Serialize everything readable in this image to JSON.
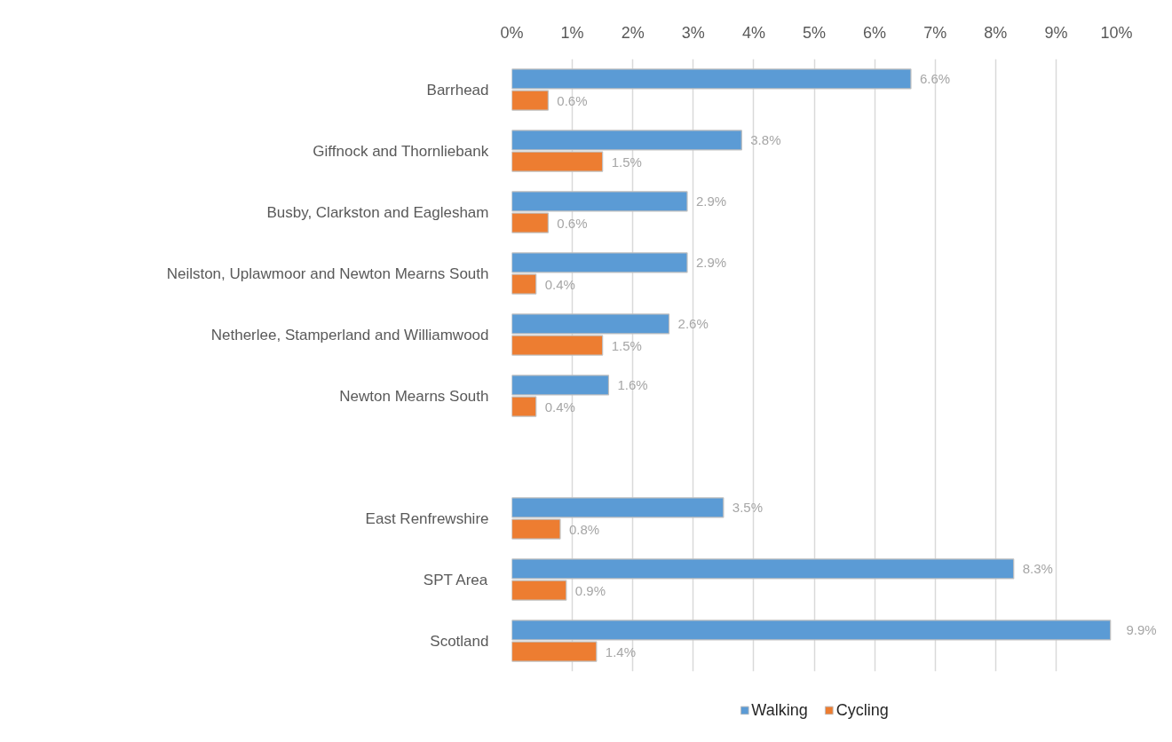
{
  "chart_data": {
    "type": "bar",
    "orientation": "horizontal",
    "categories": [
      "Barrhead",
      "Giffnock and Thornliebank",
      "Busby, Clarkston and Eaglesham",
      "Neilston, Uplawmoor and Newton Mearns South",
      "Netherlee, Stamperland and Williamwood",
      "Newton Mearns South",
      null,
      "East Renfrewshire",
      "SPT Area",
      "Scotland"
    ],
    "series": [
      {
        "name": "Walking",
        "color": "#5b9bd5",
        "values": [
          6.6,
          3.8,
          2.9,
          2.9,
          2.6,
          1.6,
          null,
          3.5,
          8.3,
          9.9
        ],
        "value_labels": [
          "6.6%",
          "3.8%",
          "2.9%",
          "2.9%",
          "2.6%",
          "1.6%",
          null,
          "3.5%",
          "8.3%",
          "9.9%"
        ]
      },
      {
        "name": "Cycling",
        "color": "#ed7d31",
        "values": [
          0.6,
          1.5,
          0.6,
          0.4,
          1.5,
          0.4,
          null,
          0.8,
          0.9,
          1.4
        ],
        "value_labels": [
          "0.6%",
          "1.5%",
          "0.6%",
          "0.4%",
          "1.5%",
          "0.4%",
          null,
          "0.8%",
          "0.9%",
          "1.4%"
        ]
      }
    ],
    "xlim": [
      0,
      10
    ],
    "xticks": [
      {
        "value": 0,
        "label": "0%"
      },
      {
        "value": 1,
        "label": "1%"
      },
      {
        "value": 2,
        "label": "2%"
      },
      {
        "value": 3,
        "label": "3%"
      },
      {
        "value": 4,
        "label": "4%"
      },
      {
        "value": 5,
        "label": "5%"
      },
      {
        "value": 6,
        "label": "6%"
      },
      {
        "value": 7,
        "label": "7%"
      },
      {
        "value": 8,
        "label": "8%"
      },
      {
        "value": 9,
        "label": "9%"
      },
      {
        "value": 10,
        "label": "10%"
      }
    ],
    "grid": "x",
    "legend": "bottom"
  }
}
